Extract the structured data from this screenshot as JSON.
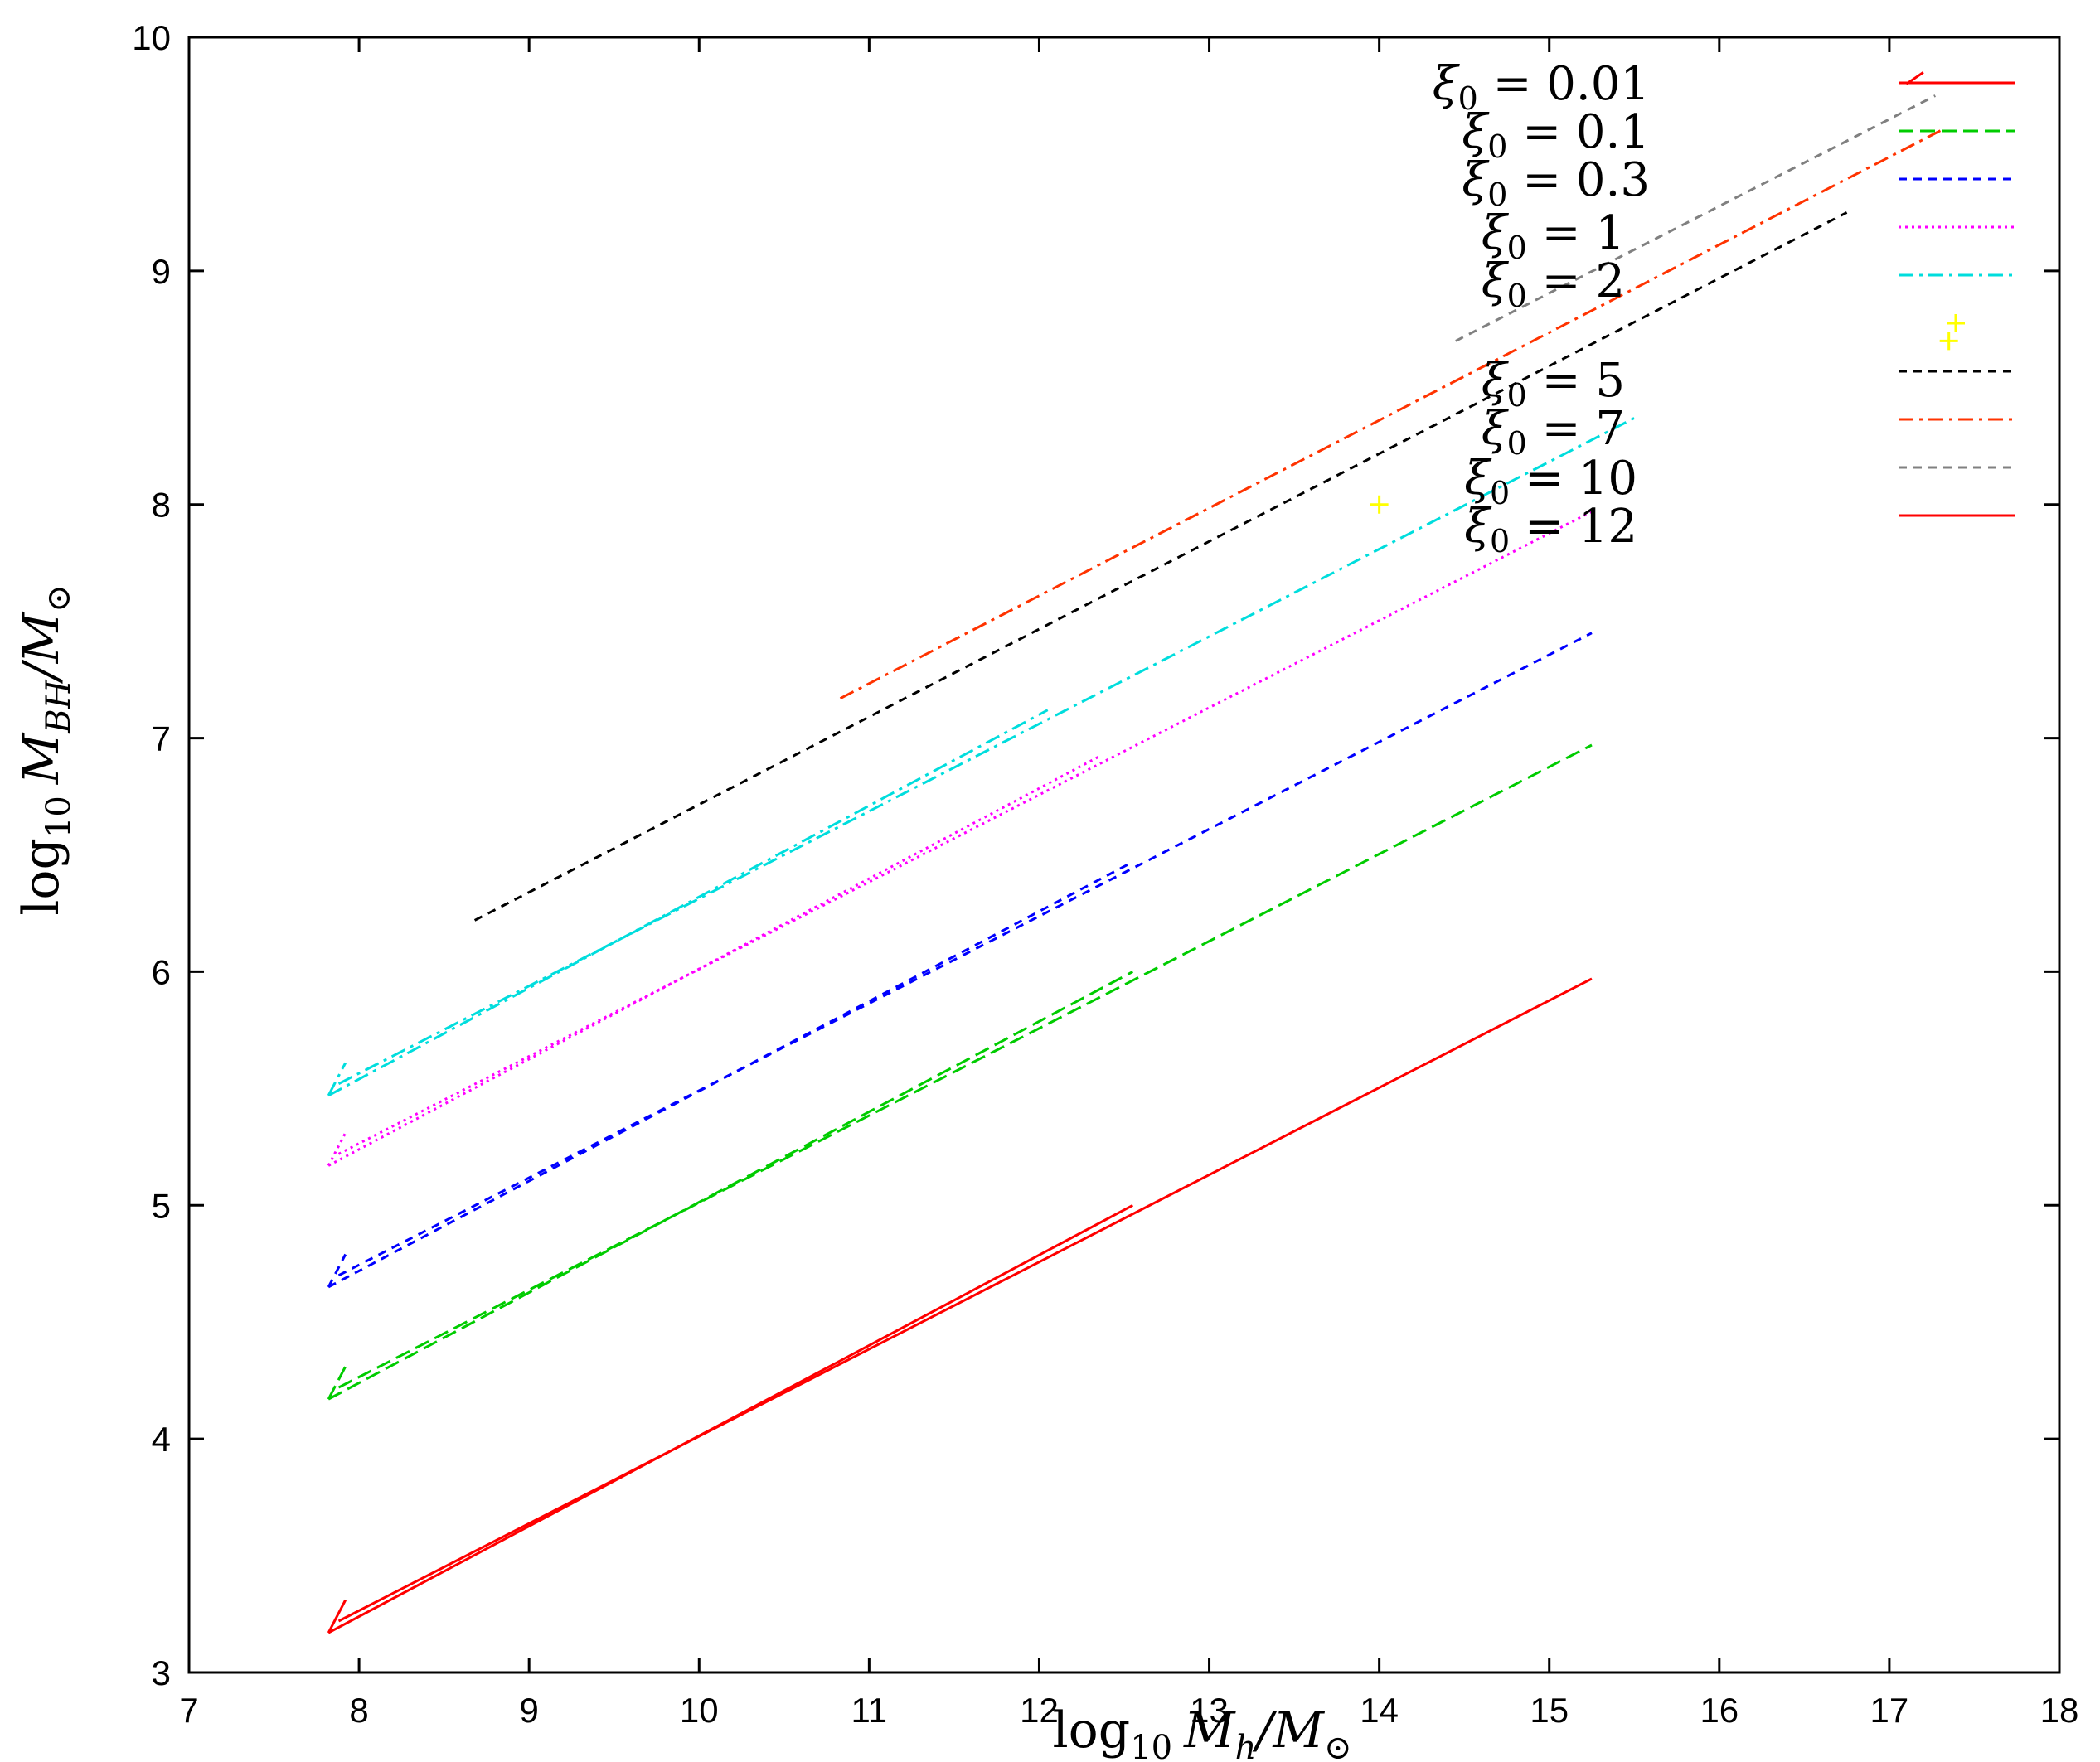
{
  "chart_data": {
    "type": "line",
    "title": "",
    "xlabel": {
      "base": "log",
      "base_sub": "10",
      "var": "M",
      "var_sub": "h",
      "rest": "/M",
      "rest_sub": "⊙"
    },
    "ylabel": {
      "base": "log",
      "base_sub": "10",
      "var": "M",
      "var_sub": "BH",
      "rest": "/M",
      "rest_sub": "⊙"
    },
    "xlim": [
      7,
      18
    ],
    "ylim": [
      3,
      10
    ],
    "xticks": [
      7,
      8,
      9,
      10,
      11,
      12,
      13,
      14,
      15,
      16,
      17,
      18
    ],
    "yticks": [
      3,
      4,
      5,
      6,
      7,
      8,
      9,
      10
    ],
    "grid": false,
    "legend_position": "top-right",
    "series": [
      {
        "name": "ξ0 = 0.01",
        "color": "#ff0000",
        "dash": "solid",
        "segments": [
          [
            [
              7.82,
              3.17
            ],
            [
              12.55,
              5.0
            ]
          ],
          [
            [
              7.88,
              3.22
            ],
            [
              15.25,
              5.97
            ]
          ],
          [
            [
              7.82,
              3.17
            ],
            [
              7.92,
              3.31
            ]
          ]
        ]
      },
      {
        "name": "ξ0 = 0.1",
        "color": "#00cc00",
        "dash": "dashed",
        "segments": [
          [
            [
              7.82,
              4.17
            ],
            [
              12.55,
              6.0
            ]
          ],
          [
            [
              7.88,
              4.22
            ],
            [
              15.25,
              6.97
            ]
          ],
          [
            [
              7.82,
              4.17
            ],
            [
              7.92,
              4.31
            ]
          ]
        ]
      },
      {
        "name": "ξ0 = 0.3",
        "color": "#0000ff",
        "dash": "dashed-short",
        "segments": [
          [
            [
              7.82,
              4.65
            ],
            [
              12.55,
              6.47
            ]
          ],
          [
            [
              7.88,
              4.7
            ],
            [
              15.25,
              7.45
            ]
          ],
          [
            [
              7.82,
              4.65
            ],
            [
              7.92,
              4.79
            ]
          ]
        ]
      },
      {
        "name": "ξ0 = 1",
        "color": "#ff00ff",
        "dash": "dotted",
        "segments": [
          [
            [
              7.82,
              5.17
            ],
            [
              12.35,
              6.92
            ]
          ],
          [
            [
              7.88,
              5.22
            ],
            [
              15.25,
              7.97
            ]
          ],
          [
            [
              7.82,
              5.17
            ],
            [
              7.92,
              5.31
            ]
          ]
        ]
      },
      {
        "name": "ξ0 = 2",
        "color": "#00dddd",
        "dash": "dash-dot",
        "segments": [
          [
            [
              7.82,
              5.47
            ],
            [
              12.05,
              7.12
            ]
          ],
          [
            [
              7.88,
              5.52
            ],
            [
              15.5,
              8.37
            ]
          ],
          [
            [
              7.82,
              5.47
            ],
            [
              7.92,
              5.61
            ]
          ]
        ]
      },
      {
        "name": "",
        "color": "#ffff00",
        "dash": "points",
        "points": [
          [
            14.0,
            8.0
          ],
          [
            17.35,
            8.7
          ]
        ]
      },
      {
        "name": "ξ0 = 5",
        "color": "#000000",
        "dash": "dashed-short",
        "segments": [
          [
            [
              8.68,
              6.22
            ],
            [
              16.75,
              9.25
            ]
          ]
        ]
      },
      {
        "name": "ξ0 = 7",
        "color": "#ff3300",
        "dash": "dash-dot",
        "segments": [
          [
            [
              10.83,
              7.17
            ],
            [
              17.3,
              9.6
            ]
          ]
        ]
      },
      {
        "name": "ξ0 = 10",
        "color": "#808080",
        "dash": "dashed-short",
        "segments": [
          [
            [
              14.45,
              8.7
            ],
            [
              17.27,
              9.75
            ]
          ]
        ]
      },
      {
        "name": "ξ0 = 12",
        "color": "#ff0000",
        "dash": "solid",
        "segments": [
          [
            [
              17.1,
              9.8
            ],
            [
              17.2,
              9.85
            ]
          ]
        ]
      }
    ]
  }
}
